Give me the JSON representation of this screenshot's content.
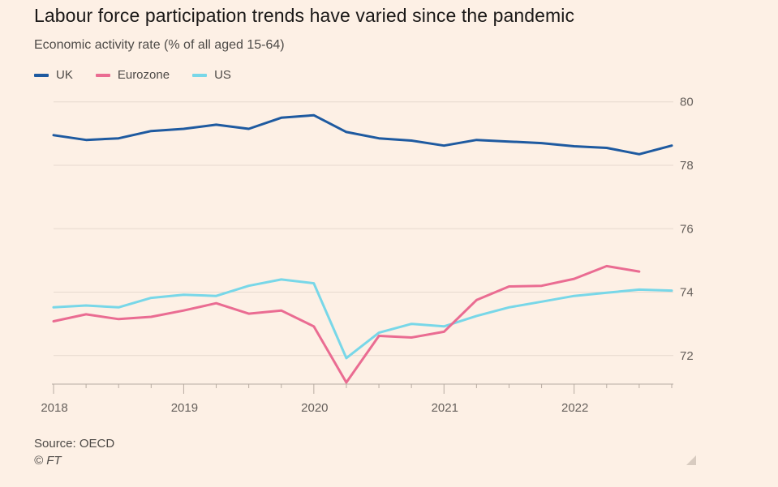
{
  "title": "Labour force participation trends have varied since the pandemic",
  "subtitle": "Economic activity rate (% of all aged 15-64)",
  "source": "Source: OECD",
  "copyright": "© FT",
  "legend": [
    {
      "name": "UK",
      "color": "#1e5aa0"
    },
    {
      "name": "Eurozone",
      "color": "#ea6c92"
    },
    {
      "name": "US",
      "color": "#78d7e8"
    }
  ],
  "chart_data": {
    "type": "line",
    "title": "Labour force participation trends have varied since the pandemic",
    "ylabel": "Economic activity rate (% of all aged 15-64)",
    "xlim": [
      2018.0,
      2022.75
    ],
    "ylim": [
      71.1,
      80.3
    ],
    "yticks": [
      72,
      74,
      76,
      78,
      80
    ],
    "xticks": [
      2018,
      2019,
      2020,
      2021,
      2022
    ],
    "grid": true,
    "series": [
      {
        "name": "UK",
        "color": "#1e5aa0",
        "points": [
          [
            2018.0,
            78.95
          ],
          [
            2018.25,
            78.8
          ],
          [
            2018.5,
            78.85
          ],
          [
            2018.75,
            79.08
          ],
          [
            2019.0,
            79.15
          ],
          [
            2019.25,
            79.28
          ],
          [
            2019.5,
            79.15
          ],
          [
            2019.75,
            79.5
          ],
          [
            2020.0,
            79.58
          ],
          [
            2020.25,
            79.05
          ],
          [
            2020.5,
            78.85
          ],
          [
            2020.75,
            78.78
          ],
          [
            2021.0,
            78.62
          ],
          [
            2021.25,
            78.8
          ],
          [
            2021.5,
            78.75
          ],
          [
            2021.75,
            78.7
          ],
          [
            2022.0,
            78.6
          ],
          [
            2022.25,
            78.55
          ],
          [
            2022.5,
            78.35
          ],
          [
            2022.75,
            78.62
          ]
        ]
      },
      {
        "name": "Eurozone",
        "color": "#ea6c92",
        "points": [
          [
            2018.0,
            73.08
          ],
          [
            2018.25,
            73.3
          ],
          [
            2018.5,
            73.15
          ],
          [
            2018.75,
            73.22
          ],
          [
            2019.0,
            73.42
          ],
          [
            2019.25,
            73.65
          ],
          [
            2019.5,
            73.32
          ],
          [
            2019.75,
            73.42
          ],
          [
            2020.0,
            72.92
          ],
          [
            2020.25,
            71.15
          ],
          [
            2020.5,
            72.62
          ],
          [
            2020.75,
            72.57
          ],
          [
            2021.0,
            72.75
          ],
          [
            2021.25,
            73.75
          ],
          [
            2021.5,
            74.18
          ],
          [
            2021.75,
            74.2
          ],
          [
            2022.0,
            74.42
          ],
          [
            2022.25,
            74.82
          ],
          [
            2022.5,
            74.65
          ]
        ]
      },
      {
        "name": "US",
        "color": "#78d7e8",
        "points": [
          [
            2018.0,
            73.52
          ],
          [
            2018.25,
            73.58
          ],
          [
            2018.5,
            73.52
          ],
          [
            2018.75,
            73.82
          ],
          [
            2019.0,
            73.92
          ],
          [
            2019.25,
            73.88
          ],
          [
            2019.5,
            74.2
          ],
          [
            2019.75,
            74.4
          ],
          [
            2020.0,
            74.28
          ],
          [
            2020.25,
            71.92
          ],
          [
            2020.5,
            72.72
          ],
          [
            2020.75,
            73.0
          ],
          [
            2021.0,
            72.92
          ],
          [
            2021.25,
            73.25
          ],
          [
            2021.5,
            73.52
          ],
          [
            2021.75,
            73.7
          ],
          [
            2022.0,
            73.88
          ],
          [
            2022.25,
            73.98
          ],
          [
            2022.5,
            74.08
          ],
          [
            2022.75,
            74.05
          ]
        ]
      }
    ]
  }
}
